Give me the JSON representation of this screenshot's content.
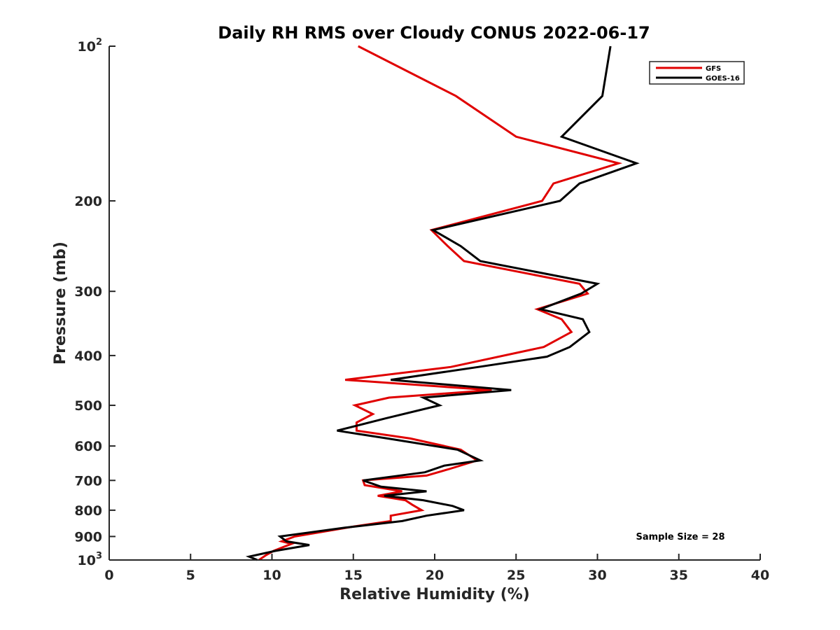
{
  "chart_data": {
    "type": "line",
    "title": "Daily RH RMS over Cloudy CONUS 2022-06-17",
    "xlabel": "Relative Humidity (%)",
    "ylabel": "Pressure (mb)",
    "xlim": [
      0,
      40
    ],
    "ylim": [
      100,
      1000
    ],
    "yscale": "log",
    "y_reversed": true,
    "grid": false,
    "legend_position": "top-right",
    "x_ticks": [
      0,
      5,
      10,
      15,
      20,
      25,
      30,
      35,
      40
    ],
    "y_ticks": [
      {
        "value": 100,
        "base": "10",
        "exp": "2"
      },
      {
        "value": 200,
        "text": "200"
      },
      {
        "value": 300,
        "text": "300"
      },
      {
        "value": 400,
        "text": "400"
      },
      {
        "value": 500,
        "text": "500"
      },
      {
        "value": 600,
        "text": "600"
      },
      {
        "value": 700,
        "text": "700"
      },
      {
        "value": 800,
        "text": "800"
      },
      {
        "value": 900,
        "text": "900"
      },
      {
        "value": 1000,
        "base": "10",
        "exp": "3"
      }
    ],
    "series": [
      {
        "name": "GFS",
        "color": "#e00000",
        "points": [
          [
            15.3,
            100
          ],
          [
            21.3,
            125
          ],
          [
            25.0,
            150
          ],
          [
            31.3,
            169
          ],
          [
            27.3,
            185
          ],
          [
            26.6,
            200
          ],
          [
            19.8,
            228
          ],
          [
            20.8,
            245
          ],
          [
            21.8,
            262
          ],
          [
            28.9,
            290
          ],
          [
            29.4,
            303
          ],
          [
            26.3,
            325
          ],
          [
            27.8,
            340
          ],
          [
            28.4,
            360
          ],
          [
            26.7,
            385
          ],
          [
            21.0,
            421
          ],
          [
            14.5,
            446
          ],
          [
            23.5,
            467
          ],
          [
            17.2,
            483
          ],
          [
            15.1,
            500
          ],
          [
            16.2,
            520
          ],
          [
            15.2,
            540
          ],
          [
            15.2,
            560
          ],
          [
            18.5,
            580
          ],
          [
            21.6,
            610
          ],
          [
            22.6,
            640
          ],
          [
            20.9,
            665
          ],
          [
            19.5,
            685
          ],
          [
            15.6,
            700
          ],
          [
            15.7,
            715
          ],
          [
            18.0,
            735
          ],
          [
            16.5,
            750
          ],
          [
            18.2,
            765
          ],
          [
            18.6,
            780
          ],
          [
            19.2,
            800
          ],
          [
            17.3,
            820
          ],
          [
            17.3,
            840
          ],
          [
            15.1,
            860
          ],
          [
            11.4,
            900
          ],
          [
            10.6,
            920
          ],
          [
            11.2,
            930
          ],
          [
            10.1,
            960
          ],
          [
            9.6,
            980
          ],
          [
            9.2,
            1000
          ]
        ]
      },
      {
        "name": "GOES-16",
        "color": "#000000",
        "points": [
          [
            30.8,
            100
          ],
          [
            30.3,
            125
          ],
          [
            27.8,
            150
          ],
          [
            32.4,
            169
          ],
          [
            28.9,
            185
          ],
          [
            27.7,
            200
          ],
          [
            19.9,
            228
          ],
          [
            21.6,
            245
          ],
          [
            22.8,
            262
          ],
          [
            30.0,
            290
          ],
          [
            29.0,
            303
          ],
          [
            26.5,
            325
          ],
          [
            29.1,
            340
          ],
          [
            29.5,
            360
          ],
          [
            28.3,
            385
          ],
          [
            26.9,
            402
          ],
          [
            22.7,
            421
          ],
          [
            17.3,
            446
          ],
          [
            24.7,
            467
          ],
          [
            19.3,
            483
          ],
          [
            20.3,
            500
          ],
          [
            17.0,
            530
          ],
          [
            14.0,
            560
          ],
          [
            17.1,
            580
          ],
          [
            21.4,
            610
          ],
          [
            22.8,
            640
          ],
          [
            20.6,
            655
          ],
          [
            19.4,
            675
          ],
          [
            15.6,
            700
          ],
          [
            16.7,
            720
          ],
          [
            19.5,
            735
          ],
          [
            16.9,
            750
          ],
          [
            19.3,
            765
          ],
          [
            21.1,
            785
          ],
          [
            21.8,
            800
          ],
          [
            19.5,
            820
          ],
          [
            18.0,
            840
          ],
          [
            14.5,
            865
          ],
          [
            10.5,
            900
          ],
          [
            10.9,
            920
          ],
          [
            12.3,
            935
          ],
          [
            10.2,
            960
          ],
          [
            8.6,
            985
          ],
          [
            9.1,
            1000
          ]
        ]
      }
    ],
    "annotation": "Sample Size = 28"
  }
}
